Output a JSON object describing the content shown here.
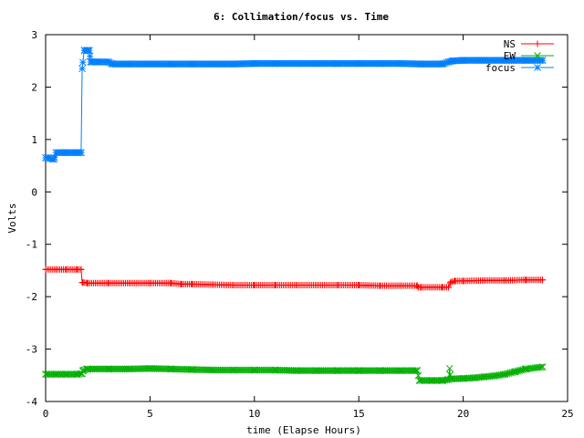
{
  "chart_data": {
    "type": "line",
    "title": "6: Collimation/focus vs. Time",
    "xlabel": "time (Elapse Hours)",
    "ylabel": "Volts",
    "xlim": [
      0,
      25
    ],
    "ylim": [
      -4,
      3
    ],
    "xticks": [
      "0",
      "5",
      "10",
      "15",
      "20",
      "25"
    ],
    "yticks": [
      "3",
      "2",
      "1",
      "0",
      "-1",
      "-2",
      "-3",
      "-4"
    ],
    "grid": false,
    "legend_position": "top-right",
    "series": [
      {
        "name": "NS",
        "color": "#ff0000",
        "marker": "plus",
        "x": [
          0.0,
          0.5,
          1.0,
          1.5,
          1.7,
          1.75,
          1.8,
          2.0,
          3.0,
          4.0,
          5.0,
          6.0,
          6.5,
          7.0,
          8.0,
          9.0,
          10.0,
          11.0,
          12.0,
          13.0,
          14.0,
          15.0,
          16.0,
          17.0,
          17.8,
          17.85,
          18.0,
          19.0,
          19.3,
          19.4,
          19.6,
          20.0,
          21.0,
          22.0,
          23.0,
          23.8
        ],
        "y": [
          -1.48,
          -1.48,
          -1.48,
          -1.48,
          -1.48,
          -1.73,
          -1.73,
          -1.74,
          -1.74,
          -1.74,
          -1.74,
          -1.74,
          -1.76,
          -1.76,
          -1.77,
          -1.78,
          -1.78,
          -1.78,
          -1.78,
          -1.78,
          -1.78,
          -1.78,
          -1.79,
          -1.79,
          -1.79,
          -1.82,
          -1.82,
          -1.82,
          -1.82,
          -1.72,
          -1.7,
          -1.7,
          -1.69,
          -1.69,
          -1.68,
          -1.68
        ]
      },
      {
        "name": "EW",
        "color": "#00b000",
        "marker": "cross",
        "x": [
          0.0,
          0.5,
          1.0,
          1.5,
          1.75,
          1.8,
          2.0,
          3.0,
          4.0,
          5.0,
          6.0,
          7.0,
          8.0,
          9.0,
          10.0,
          11.0,
          12.0,
          13.0,
          14.0,
          15.0,
          16.0,
          17.0,
          17.8,
          17.9,
          18.5,
          19.0,
          19.3,
          19.35,
          19.4,
          20.0,
          20.5,
          21.0,
          21.5,
          22.0,
          22.5,
          23.0,
          23.8
        ],
        "y": [
          -3.48,
          -3.48,
          -3.48,
          -3.48,
          -3.47,
          -3.4,
          -3.38,
          -3.38,
          -3.38,
          -3.37,
          -3.38,
          -3.39,
          -3.4,
          -3.4,
          -3.4,
          -3.4,
          -3.41,
          -3.41,
          -3.41,
          -3.41,
          -3.41,
          -3.41,
          -3.41,
          -3.6,
          -3.6,
          -3.6,
          -3.58,
          -3.37,
          -3.57,
          -3.56,
          -3.55,
          -3.53,
          -3.51,
          -3.48,
          -3.43,
          -3.38,
          -3.34
        ]
      },
      {
        "name": "focus",
        "color": "#0080ff",
        "marker": "star",
        "x": [
          0.0,
          0.1,
          0.4,
          0.5,
          1.0,
          1.5,
          1.7,
          1.75,
          1.85,
          2.0,
          2.1,
          2.15,
          2.2,
          2.5,
          3.0,
          3.2,
          4.0,
          5.0,
          6.0,
          7.0,
          8.0,
          9.0,
          10.0,
          11.0,
          12.0,
          13.0,
          14.0,
          15.0,
          16.0,
          17.0,
          18.0,
          19.0,
          19.3,
          19.5,
          20.0,
          21.0,
          22.0,
          23.0,
          23.8
        ],
        "y": [
          0.65,
          0.65,
          0.62,
          0.75,
          0.75,
          0.75,
          0.75,
          2.35,
          2.7,
          2.7,
          2.7,
          2.48,
          2.48,
          2.48,
          2.48,
          2.44,
          2.44,
          2.44,
          2.44,
          2.44,
          2.44,
          2.44,
          2.45,
          2.45,
          2.45,
          2.45,
          2.45,
          2.45,
          2.45,
          2.45,
          2.44,
          2.44,
          2.48,
          2.5,
          2.51,
          2.51,
          2.51,
          2.51,
          2.51
        ]
      }
    ]
  }
}
